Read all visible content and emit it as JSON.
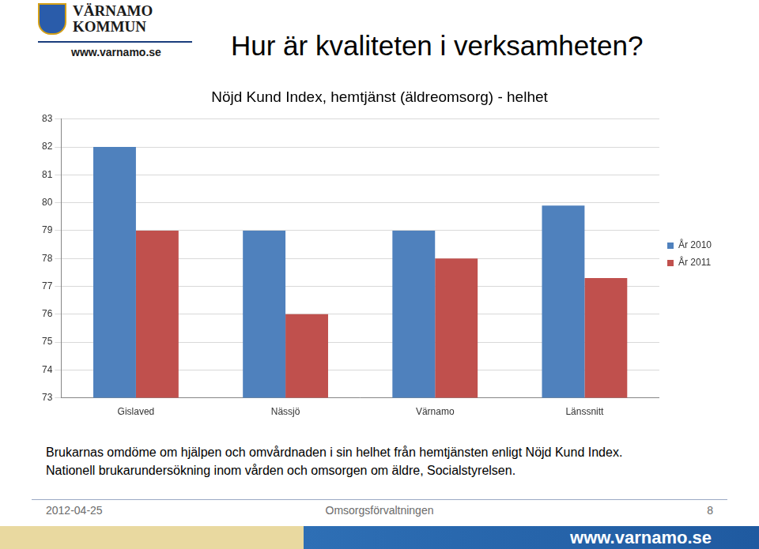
{
  "logo": {
    "name": [
      "VÄRNAMO",
      "KOMMUN"
    ],
    "url": "www.varnamo.se"
  },
  "heading": "Hur är kvaliteten i verksamheten?",
  "chart_data": {
    "type": "bar",
    "title": "Nöjd Kund Index, hemtjänst (äldreomsorg) - helhet",
    "categories": [
      "Gislaved",
      "Nässjö",
      "Värnamo",
      "Länssnitt"
    ],
    "series": [
      {
        "name": "År 2010",
        "color": "#4f81bd",
        "values": [
          82,
          79,
          79,
          79.9
        ]
      },
      {
        "name": "År 2011",
        "color": "#c0504d",
        "values": [
          79,
          76,
          78,
          77.3
        ]
      }
    ],
    "ylim": [
      73,
      83
    ],
    "yticks": [
      73,
      74,
      75,
      76,
      77,
      78,
      79,
      80,
      81,
      82,
      83
    ],
    "grid": true,
    "legend": "right"
  },
  "caption": [
    "Brukarnas omdöme om hjälpen och omvårdnaden i sin helhet från hemtjänsten enligt Nöjd Kund Index.",
    "Nationell brukarundersökning inom vården och omsorgen om äldre, Socialstyrelsen."
  ],
  "footer": {
    "date": "2012-04-25",
    "department": "Omsorgsförvaltningen",
    "page": "8",
    "url": "www.varnamo.se"
  }
}
